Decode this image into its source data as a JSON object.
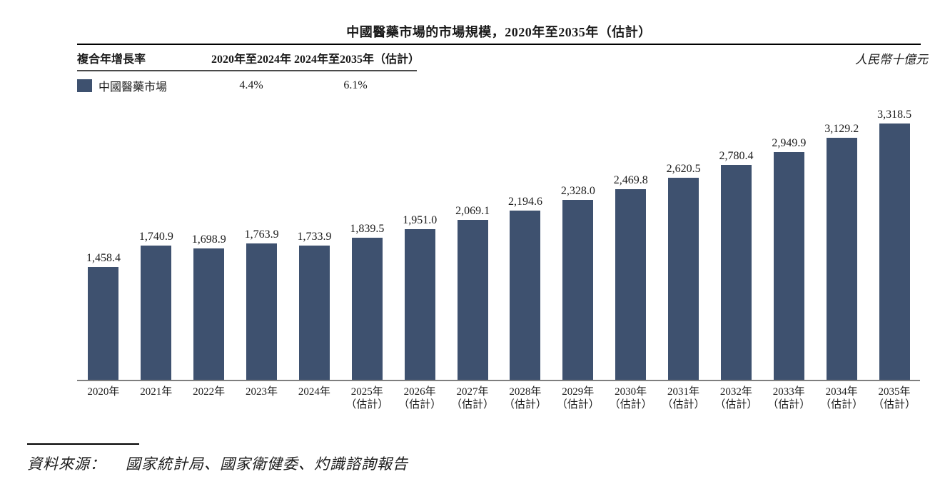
{
  "title": "中國醫藥市場的市場規模，2020年至2035年（估計）",
  "unit_label": "人民幣十億元",
  "legend_table": {
    "header_label": "複合年增長率",
    "period1": "2020年至2024年",
    "period2": "2024年至2035年（估計）",
    "series_label": "中國醫藥市場",
    "cagr1": "4.4%",
    "cagr2": "6.1%"
  },
  "source": {
    "prefix": "資料來源：",
    "text": "國家統計局、國家衛健委、灼識諮詢報告"
  },
  "chart_data": {
    "type": "bar",
    "title": "中國醫藥市場的市場規模，2020年至2035年（估計）",
    "xlabel": "",
    "ylabel": "人民幣十億元",
    "ylim": [
      0,
      3500
    ],
    "grid": false,
    "legend_position": "top-left-table",
    "bar_color": "#3E516F",
    "axis_color": "#7f7f7f",
    "series_name": "中國醫藥市場",
    "cagr": {
      "2020-2024": "4.4%",
      "2024-2035(估計)": "6.1%"
    },
    "categories": [
      {
        "year": "2020年",
        "note": ""
      },
      {
        "year": "2021年",
        "note": ""
      },
      {
        "year": "2022年",
        "note": ""
      },
      {
        "year": "2023年",
        "note": ""
      },
      {
        "year": "2024年",
        "note": ""
      },
      {
        "year": "2025年",
        "note": "（估計）"
      },
      {
        "year": "2026年",
        "note": "（估計）"
      },
      {
        "year": "2027年",
        "note": "（估計）"
      },
      {
        "year": "2028年",
        "note": "（估計）"
      },
      {
        "year": "2029年",
        "note": "（估計）"
      },
      {
        "year": "2030年",
        "note": "（估計）"
      },
      {
        "year": "2031年",
        "note": "（估計）"
      },
      {
        "year": "2032年",
        "note": "（估計）"
      },
      {
        "year": "2033年",
        "note": "（估計）"
      },
      {
        "year": "2034年",
        "note": "（估計）"
      },
      {
        "year": "2035年",
        "note": "（估計）"
      }
    ],
    "values": [
      1458.4,
      1740.9,
      1698.9,
      1763.9,
      1733.9,
      1839.5,
      1951.0,
      2069.1,
      2194.6,
      2328.0,
      2469.8,
      2620.5,
      2780.4,
      2949.9,
      3129.2,
      3318.5
    ],
    "labels": [
      "1,458.4",
      "1,740.9",
      "1,698.9",
      "1,763.9",
      "1,733.9",
      "1,839.5",
      "1,951.0",
      "2,069.1",
      "2,194.6",
      "2,328.0",
      "2,469.8",
      "2,620.5",
      "2,780.4",
      "2,949.9",
      "3,129.2",
      "3,318.5"
    ]
  }
}
